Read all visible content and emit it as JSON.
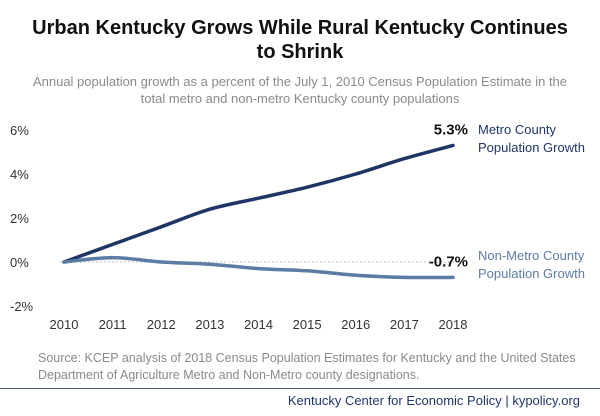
{
  "title": "Urban Kentucky Grows While Rural Kentucky Continues to Shrink",
  "subtitle": "Annual population growth as a percent of the July 1, 2010 Census Population Estimate in the total metro and non-metro Kentucky county populations",
  "source": "Source: KCEP analysis of 2018 Census Population Estimates for Kentucky and the United States Department of Agriculture Metro and Non-Metro county designations.",
  "footer": "Kentucky Center for Economic Policy | kypolicy.org",
  "chart_data": {
    "type": "line",
    "x": [
      2010,
      2011,
      2012,
      2013,
      2014,
      2015,
      2016,
      2017,
      2018
    ],
    "ylim": [
      -2,
      6
    ],
    "yticks": [
      -2,
      0,
      2,
      4,
      6
    ],
    "ytick_labels": [
      "-2%",
      "0%",
      "2%",
      "4%",
      "6%"
    ],
    "xtick_labels": [
      "2010",
      "2011",
      "2012",
      "2013",
      "2014",
      "2015",
      "2016",
      "2017",
      "2018"
    ],
    "grid": false,
    "zero_line": "dotted",
    "series": [
      {
        "name": "Metro County Population Growth",
        "label_lines": [
          "Metro County",
          "Population Growth"
        ],
        "end_label": "5.3%",
        "color": "#1f3566",
        "values": [
          0.0,
          0.8,
          1.6,
          2.4,
          2.9,
          3.4,
          4.0,
          4.7,
          5.3
        ]
      },
      {
        "name": "Non-Metro County Population Growth",
        "label_lines": [
          "Non-Metro County",
          "Population Growth"
        ],
        "end_label": "-0.7%",
        "color": "#5c7ca3",
        "values": [
          0.0,
          0.2,
          0.0,
          -0.1,
          -0.3,
          -0.4,
          -0.6,
          -0.7,
          -0.7
        ]
      }
    ]
  }
}
